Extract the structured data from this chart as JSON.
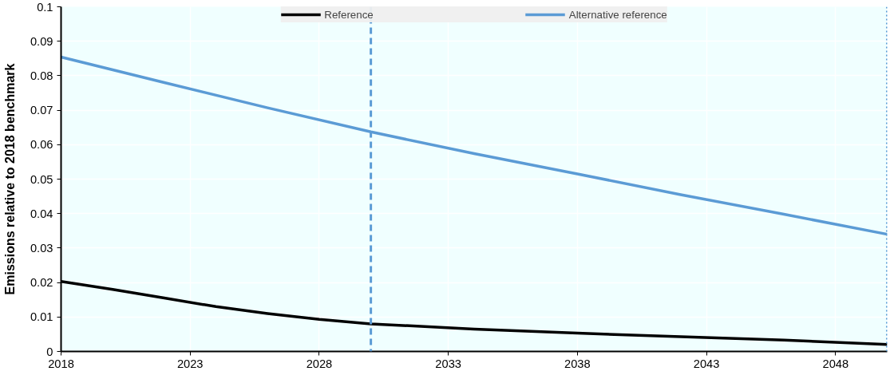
{
  "chart_data": {
    "type": "line",
    "ylabel": "Emissions relative to 2018 benchmark",
    "series": [
      {
        "name": "Reference",
        "color": "#000000",
        "x": [
          2018,
          2020,
          2022,
          2024,
          2026,
          2028,
          2030,
          2034,
          2038,
          2042,
          2046,
          2050
        ],
        "values": [
          0.0203,
          0.018,
          0.0155,
          0.013,
          0.011,
          0.0093,
          0.008,
          0.0065,
          0.0053,
          0.0043,
          0.0033,
          0.002
        ]
      },
      {
        "name": "Alternative reference",
        "color": "#5b9bd5",
        "x": [
          2018,
          2022,
          2026,
          2030,
          2034,
          2038,
          2042,
          2046,
          2050
        ],
        "values": [
          0.0854,
          0.078,
          0.0707,
          0.0637,
          0.0574,
          0.0515,
          0.0455,
          0.0398,
          0.034
        ]
      }
    ],
    "xlim": [
      2018,
      2050
    ],
    "xticks": [
      2018,
      2023,
      2028,
      2033,
      2038,
      2043,
      2048
    ],
    "ylim": [
      0,
      0.1
    ],
    "yticks": [
      0,
      0.01,
      0.02,
      0.03,
      0.04,
      0.05,
      0.06,
      0.07,
      0.08,
      0.09,
      0.1
    ],
    "ref_lines": [
      {
        "axis": "x",
        "value": 2030,
        "label": null,
        "color": "#5b9bd5",
        "line_style": "dashed"
      },
      {
        "axis": "x",
        "value": 2050,
        "label": null,
        "color": "#5b9bd5",
        "line_style": "dotted"
      }
    ],
    "grid": true,
    "legend": "top",
    "line_style": "solid",
    "marker": "none"
  }
}
